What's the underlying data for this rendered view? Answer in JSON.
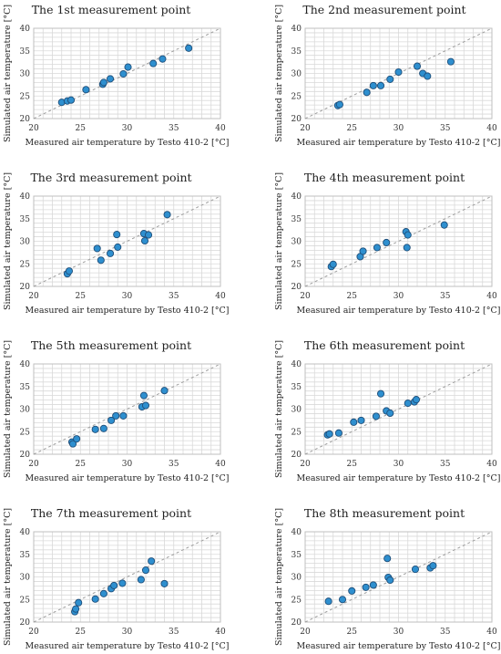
{
  "chart_data": [
    {
      "type": "scatter",
      "title": "The 1st measurement point",
      "xlabel": "Measured air temperature by Testo 410-2 [°C]",
      "ylabel": "Simulated air temperature [°C]",
      "xlim": [
        20,
        40
      ],
      "ylim": [
        20,
        40
      ],
      "xticks": [
        "20",
        "25",
        "30",
        "35",
        "40"
      ],
      "yticks": [
        "20",
        "25",
        "30",
        "35",
        "40"
      ],
      "grid": true,
      "reference_line": "y = x",
      "points": [
        [
          23.0,
          23.6
        ],
        [
          23.6,
          23.9
        ],
        [
          24.0,
          24.1
        ],
        [
          25.6,
          26.4
        ],
        [
          27.4,
          27.6
        ],
        [
          27.5,
          28.0
        ],
        [
          28.2,
          28.8
        ],
        [
          29.6,
          29.9
        ],
        [
          30.1,
          31.4
        ],
        [
          32.8,
          32.2
        ],
        [
          33.8,
          33.2
        ],
        [
          36.6,
          35.6
        ]
      ]
    },
    {
      "type": "scatter",
      "title": "The 2nd measurement point",
      "xlabel": "Measured air temperature by Testo 410-2 [°C]",
      "ylabel": "Simulated air temperature [°C]",
      "xlim": [
        20,
        40
      ],
      "ylim": [
        20,
        40
      ],
      "xticks": [
        "20",
        "25",
        "30",
        "35",
        "40"
      ],
      "yticks": [
        "20",
        "25",
        "30",
        "35",
        "40"
      ],
      "grid": true,
      "reference_line": "y = x",
      "points": [
        [
          23.5,
          22.9
        ],
        [
          23.7,
          23.1
        ],
        [
          26.6,
          25.8
        ],
        [
          27.3,
          27.3
        ],
        [
          28.1,
          27.3
        ],
        [
          29.1,
          28.7
        ],
        [
          30.0,
          30.3
        ],
        [
          32.0,
          31.6
        ],
        [
          32.6,
          30.0
        ],
        [
          33.1,
          29.4
        ],
        [
          35.6,
          32.6
        ]
      ]
    },
    {
      "type": "scatter",
      "title": "The 3rd measurement point",
      "xlabel": "Measured air temperature by Testo 410-2 [°C]",
      "ylabel": "Simulated air temperature [°C]",
      "xlim": [
        20,
        40
      ],
      "ylim": [
        20,
        40
      ],
      "xticks": [
        "20",
        "25",
        "30",
        "35",
        "40"
      ],
      "yticks": [
        "20",
        "25",
        "30",
        "35",
        "40"
      ],
      "grid": true,
      "reference_line": "y = x",
      "points": [
        [
          23.6,
          22.8
        ],
        [
          23.8,
          23.4
        ],
        [
          26.8,
          28.4
        ],
        [
          27.2,
          25.8
        ],
        [
          28.2,
          27.3
        ],
        [
          28.9,
          31.5
        ],
        [
          29.0,
          28.7
        ],
        [
          31.8,
          31.7
        ],
        [
          31.9,
          30.1
        ],
        [
          32.3,
          31.4
        ],
        [
          34.3,
          35.9
        ]
      ]
    },
    {
      "type": "scatter",
      "title": "The 4th measurement point",
      "xlabel": "Measured air temperature by Testo 410-2 [°C]",
      "ylabel": "Simulated air temperature [°C]",
      "xlim": [
        20,
        40
      ],
      "ylim": [
        20,
        40
      ],
      "xticks": [
        "20",
        "25",
        "30",
        "35",
        "40"
      ],
      "yticks": [
        "20",
        "25",
        "30",
        "35",
        "40"
      ],
      "grid": true,
      "reference_line": "y = x",
      "points": [
        [
          22.8,
          24.4
        ],
        [
          23.0,
          24.9
        ],
        [
          25.9,
          26.6
        ],
        [
          26.2,
          27.8
        ],
        [
          27.7,
          28.6
        ],
        [
          28.7,
          29.7
        ],
        [
          30.8,
          32.1
        ],
        [
          31.0,
          31.4
        ],
        [
          30.9,
          28.6
        ],
        [
          34.9,
          33.6
        ]
      ]
    },
    {
      "type": "scatter",
      "title": "The 5th measurement point",
      "xlabel": "Measured air temperature by Testo 410-2 [°C]",
      "ylabel": "Simulated air temperature [°C]",
      "xlim": [
        20,
        40
      ],
      "ylim": [
        20,
        40
      ],
      "xticks": [
        "20",
        "25",
        "30",
        "35",
        "40"
      ],
      "yticks": [
        "20",
        "25",
        "30",
        "35",
        "40"
      ],
      "grid": true,
      "reference_line": "y = x",
      "points": [
        [
          24.1,
          22.7
        ],
        [
          24.2,
          22.3
        ],
        [
          24.6,
          23.4
        ],
        [
          26.6,
          25.5
        ],
        [
          27.5,
          25.7
        ],
        [
          28.3,
          27.5
        ],
        [
          28.8,
          28.5
        ],
        [
          29.6,
          28.5
        ],
        [
          31.6,
          30.5
        ],
        [
          31.8,
          33.0
        ],
        [
          32.0,
          30.8
        ],
        [
          34.0,
          34.1
        ]
      ]
    },
    {
      "type": "scatter",
      "title": "The 6th measurement point",
      "xlabel": "Measured air temperature by Testo 410-2 [°C]",
      "ylabel": "Simulated air temperature [°C]",
      "xlim": [
        20,
        40
      ],
      "ylim": [
        20,
        40
      ],
      "xticks": [
        "20",
        "25",
        "30",
        "35",
        "40"
      ],
      "yticks": [
        "20",
        "25",
        "30",
        "35",
        "40"
      ],
      "grid": true,
      "reference_line": "y = x",
      "points": [
        [
          22.4,
          24.3
        ],
        [
          22.6,
          24.5
        ],
        [
          23.6,
          24.7
        ],
        [
          25.2,
          27.1
        ],
        [
          26.0,
          27.5
        ],
        [
          27.6,
          28.4
        ],
        [
          28.1,
          33.4
        ],
        [
          28.7,
          29.6
        ],
        [
          29.1,
          29.1
        ],
        [
          31.0,
          31.3
        ],
        [
          31.7,
          31.6
        ],
        [
          31.9,
          32.1
        ]
      ]
    },
    {
      "type": "scatter",
      "title": "The 7th measurement point",
      "xlabel": "Measured air temperature by Testo 410-2 [°C]",
      "ylabel": "Simulated air temperature [°C]",
      "xlim": [
        20,
        40
      ],
      "ylim": [
        20,
        40
      ],
      "xticks": [
        "20",
        "25",
        "30",
        "35",
        "40"
      ],
      "yticks": [
        "20",
        "25",
        "30",
        "35",
        "40"
      ],
      "grid": true,
      "reference_line": "y = x",
      "points": [
        [
          24.4,
          22.3
        ],
        [
          24.5,
          22.9
        ],
        [
          24.8,
          24.3
        ],
        [
          26.6,
          25.1
        ],
        [
          27.5,
          26.3
        ],
        [
          28.3,
          27.4
        ],
        [
          28.6,
          28.1
        ],
        [
          29.5,
          28.6
        ],
        [
          31.5,
          29.4
        ],
        [
          32.0,
          31.5
        ],
        [
          32.6,
          33.5
        ],
        [
          34.0,
          28.5
        ]
      ]
    },
    {
      "type": "scatter",
      "title": "The 8th measurement point",
      "xlabel": "Measured air temperature by Testo 410-2 [°C]",
      "ylabel": "Simulated air temperature [°C]",
      "xlim": [
        20,
        40
      ],
      "ylim": [
        20,
        40
      ],
      "xticks": [
        "20",
        "25",
        "30",
        "35",
        "40"
      ],
      "yticks": [
        "20",
        "25",
        "30",
        "35",
        "40"
      ],
      "grid": true,
      "reference_line": "y = x",
      "points": [
        [
          22.5,
          24.6
        ],
        [
          24.0,
          25.0
        ],
        [
          25.0,
          26.9
        ],
        [
          26.5,
          27.7
        ],
        [
          27.3,
          28.2
        ],
        [
          28.8,
          34.1
        ],
        [
          28.9,
          29.9
        ],
        [
          29.1,
          29.3
        ],
        [
          31.8,
          31.7
        ],
        [
          33.4,
          32.0
        ],
        [
          33.7,
          32.5
        ]
      ]
    }
  ]
}
